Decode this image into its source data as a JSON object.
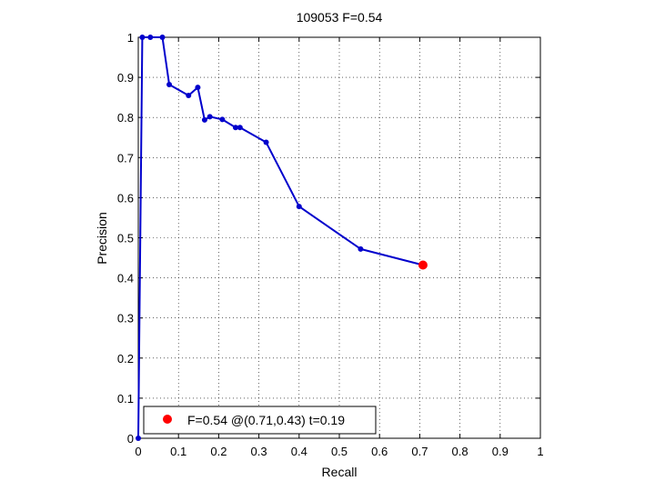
{
  "chart_data": {
    "type": "line",
    "title": "109053 F=0.54",
    "xlabel": "Recall",
    "ylabel": "Precision",
    "xlim": [
      0,
      1
    ],
    "ylim": [
      0,
      1
    ],
    "x_ticks": [
      "0",
      "0.1",
      "0.2",
      "0.3",
      "0.4",
      "0.5",
      "0.6",
      "0.7",
      "0.8",
      "0.9",
      "1"
    ],
    "y_ticks": [
      "0",
      "0.1",
      "0.2",
      "0.3",
      "0.4",
      "0.5",
      "0.6",
      "0.7",
      "0.8",
      "0.9",
      "1"
    ],
    "grid": true,
    "legend_position": "bottom-left",
    "series": [
      {
        "color": "#0000cc",
        "points": [
          {
            "x": 0.0,
            "y": 0.0
          },
          {
            "x": 0.01,
            "y": 1.0
          },
          {
            "x": 0.03,
            "y": 1.0
          },
          {
            "x": 0.06,
            "y": 1.0
          },
          {
            "x": 0.077,
            "y": 0.882
          },
          {
            "x": 0.125,
            "y": 0.855
          },
          {
            "x": 0.148,
            "y": 0.875
          },
          {
            "x": 0.165,
            "y": 0.794
          },
          {
            "x": 0.178,
            "y": 0.802
          },
          {
            "x": 0.209,
            "y": 0.795
          },
          {
            "x": 0.242,
            "y": 0.775
          },
          {
            "x": 0.253,
            "y": 0.775
          },
          {
            "x": 0.318,
            "y": 0.738
          },
          {
            "x": 0.4,
            "y": 0.578
          },
          {
            "x": 0.553,
            "y": 0.472
          },
          {
            "x": 0.708,
            "y": 0.432
          }
        ]
      }
    ],
    "best_point": {
      "x": 0.708,
      "y": 0.432,
      "color": "#ff0000"
    },
    "legend": {
      "text": "F=0.54 @(0.71,0.43) t=0.19",
      "marker_color": "#ff0000"
    }
  }
}
